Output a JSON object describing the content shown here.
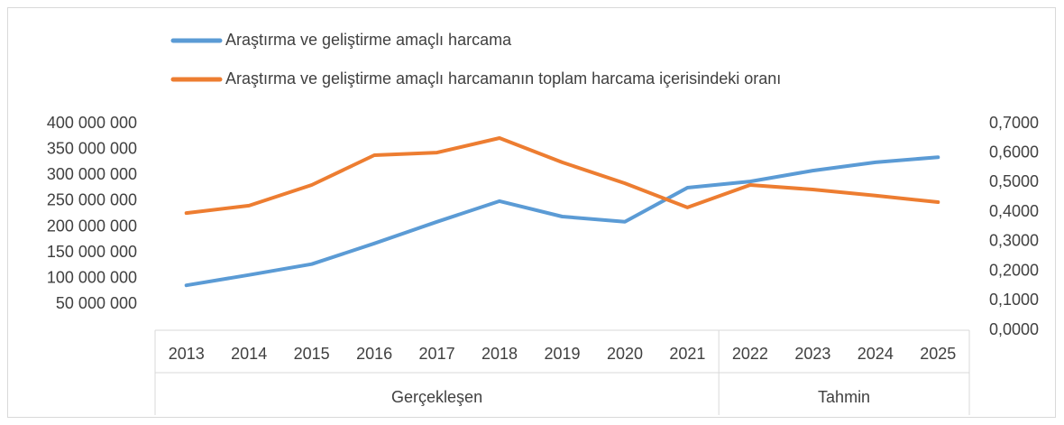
{
  "chart_data": {
    "type": "line",
    "categories": [
      "2013",
      "2014",
      "2015",
      "2016",
      "2017",
      "2018",
      "2019",
      "2020",
      "2021",
      "2022",
      "2023",
      "2024",
      "2025"
    ],
    "groups": [
      {
        "name": "Gerçekleşen",
        "span": 9
      },
      {
        "name": "Tahmin",
        "span": 4
      }
    ],
    "series": [
      {
        "name": "Araştırma ve geliştirme amaçlı harcama",
        "color": "#5b9bd5",
        "axis": "y",
        "values": [
          87000000,
          107000000,
          128000000,
          168000000,
          210000000,
          250000000,
          220000000,
          210000000,
          276000000,
          288000000,
          309000000,
          325000000,
          335000000
        ]
      },
      {
        "name": "Araştırma ve geliştirme amaçlı harcamanın toplam harcama içerisindeki oranı",
        "color": "#ed7d31",
        "axis": "y2",
        "values": [
          0.397,
          0.422,
          0.492,
          0.593,
          0.602,
          0.651,
          0.569,
          0.498,
          0.416,
          0.492,
          0.477,
          0.456,
          0.434
        ]
      }
    ],
    "ylim": [
      0,
      400000000
    ],
    "yticks": [
      {
        "value": 50000000,
        "label": "50 000 000"
      },
      {
        "value": 100000000,
        "label": "100 000 000"
      },
      {
        "value": 150000000,
        "label": "150 000 000"
      },
      {
        "value": 200000000,
        "label": "200 000 000"
      },
      {
        "value": 250000000,
        "label": "250 000 000"
      },
      {
        "value": 300000000,
        "label": "300 000 000"
      },
      {
        "value": 350000000,
        "label": "350 000 000"
      },
      {
        "value": 400000000,
        "label": "400 000 000"
      }
    ],
    "y2lim": [
      0,
      0.7
    ],
    "y2ticks": [
      {
        "value": 0,
        "label": "0,0000"
      },
      {
        "value": 0.1,
        "label": "0,1000"
      },
      {
        "value": 0.2,
        "label": "0,2000"
      },
      {
        "value": 0.3,
        "label": "0,3000"
      },
      {
        "value": 0.4,
        "label": "0,4000"
      },
      {
        "value": 0.5,
        "label": "0,5000"
      },
      {
        "value": 0.6,
        "label": "0,6000"
      },
      {
        "value": 0.7,
        "label": "0,7000"
      }
    ],
    "legend": "top"
  }
}
